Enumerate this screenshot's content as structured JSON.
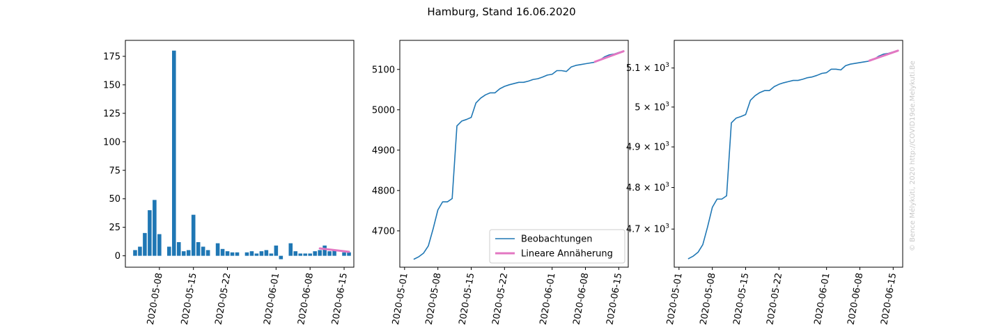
{
  "figure": {
    "title": "Hamburg, Stand 16.06.2020",
    "credit": "© Bence Mélykúti, 2020  http://COVID19de.Melykuti.Be"
  },
  "colors": {
    "observed": "#1f77b4",
    "fit": "#e377c2"
  },
  "chart_data": [
    {
      "type": "bar",
      "title": "",
      "xlabel": "",
      "ylabel": "",
      "x_is_date": true,
      "xlim": [
        "2020-05-01",
        "2020-06-17"
      ],
      "ylim": [
        -10,
        189
      ],
      "xticks": [
        "2020-05-08",
        "2020-05-15",
        "2020-05-22",
        "2020-06-01",
        "2020-06-08",
        "2020-06-15"
      ],
      "yticks": [
        0,
        25,
        50,
        75,
        100,
        125,
        150,
        175
      ],
      "ytick_labels": [
        "0",
        "25",
        "50",
        "75",
        "100",
        "125",
        "150",
        "175"
      ],
      "series": [
        {
          "kind": "bar",
          "x": [
            "2020-05-03",
            "2020-05-04",
            "2020-05-05",
            "2020-05-06",
            "2020-05-07",
            "2020-05-08",
            "2020-05-10",
            "2020-05-11",
            "2020-05-12",
            "2020-05-13",
            "2020-05-14",
            "2020-05-15",
            "2020-05-16",
            "2020-05-17",
            "2020-05-18",
            "2020-05-20",
            "2020-05-21",
            "2020-05-22",
            "2020-05-23",
            "2020-05-24",
            "2020-05-26",
            "2020-05-27",
            "2020-05-28",
            "2020-05-29",
            "2020-05-30",
            "2020-05-31",
            "2020-06-01",
            "2020-06-02",
            "2020-06-04",
            "2020-06-05",
            "2020-06-06",
            "2020-06-07",
            "2020-06-08",
            "2020-06-09",
            "2020-06-10",
            "2020-06-11",
            "2020-06-12",
            "2020-06-13",
            "2020-06-15",
            "2020-06-16"
          ],
          "values": [
            5,
            8,
            20,
            40,
            49,
            19,
            8,
            180,
            12,
            4,
            5,
            36,
            12,
            8,
            5,
            11,
            6,
            4,
            3,
            3,
            3,
            4,
            2,
            4,
            5,
            2,
            9,
            -3,
            11,
            4,
            2,
            2,
            2,
            4,
            5,
            9,
            4,
            5,
            3,
            3
          ]
        },
        {
          "kind": "line",
          "name": "",
          "x": [
            "2020-06-10",
            "2020-06-16"
          ],
          "values": [
            6.5,
            3.5
          ]
        }
      ]
    },
    {
      "type": "line",
      "title": "",
      "xlabel": "",
      "ylabel": "",
      "x_is_date": true,
      "xlim": [
        "2020-04-30",
        "2020-06-17"
      ],
      "ylim": [
        4610,
        5172
      ],
      "xticks": [
        "2020-05-01",
        "2020-05-08",
        "2020-05-15",
        "2020-05-22",
        "2020-06-01",
        "2020-06-08",
        "2020-06-15"
      ],
      "yticks": [
        4700,
        4800,
        4900,
        5000,
        5100
      ],
      "ytick_labels": [
        "4700",
        "4800",
        "4900",
        "5000",
        "5100"
      ],
      "legend": {
        "position": "lower-right",
        "entries": [
          "Beobachtungen",
          "Lineare Annäherung"
        ]
      },
      "series": [
        {
          "kind": "line",
          "name": "Beobachtungen",
          "x": [
            "2020-05-03",
            "2020-05-04",
            "2020-05-05",
            "2020-05-06",
            "2020-05-07",
            "2020-05-08",
            "2020-05-09",
            "2020-05-10",
            "2020-05-11",
            "2020-05-12",
            "2020-05-13",
            "2020-05-14",
            "2020-05-15",
            "2020-05-16",
            "2020-05-17",
            "2020-05-18",
            "2020-05-19",
            "2020-05-20",
            "2020-05-21",
            "2020-05-22",
            "2020-05-23",
            "2020-05-24",
            "2020-05-25",
            "2020-05-26",
            "2020-05-27",
            "2020-05-28",
            "2020-05-29",
            "2020-05-30",
            "2020-05-31",
            "2020-06-01",
            "2020-06-02",
            "2020-06-03",
            "2020-06-04",
            "2020-06-05",
            "2020-06-06",
            "2020-06-07",
            "2020-06-08",
            "2020-06-09",
            "2020-06-10",
            "2020-06-11",
            "2020-06-12",
            "2020-06-13",
            "2020-06-14",
            "2020-06-15",
            "2020-06-16"
          ],
          "values": [
            4630,
            4636,
            4645,
            4663,
            4705,
            4752,
            4772,
            4772,
            4780,
            4960,
            4972,
            4976,
            4981,
            5017,
            5029,
            5037,
            5042,
            5042,
            5052,
            5058,
            5062,
            5065,
            5068,
            5068,
            5071,
            5075,
            5077,
            5081,
            5086,
            5088,
            5097,
            5097,
            5095,
            5106,
            5110,
            5112,
            5114,
            5116,
            5118,
            5123,
            5131,
            5136,
            5138,
            5142,
            5146
          ]
        },
        {
          "kind": "line",
          "name": "Lineare Annäherung",
          "x": [
            "2020-06-10",
            "2020-06-16"
          ],
          "values": [
            5119,
            5145
          ]
        }
      ]
    },
    {
      "type": "line",
      "title": "",
      "xlabel": "",
      "ylabel": "",
      "x_is_date": true,
      "yscale": "log",
      "xlim": [
        "2020-04-30",
        "2020-06-17"
      ],
      "ylim": [
        4610,
        5172
      ],
      "xticks": [
        "2020-05-01",
        "2020-05-08",
        "2020-05-15",
        "2020-05-22",
        "2020-06-01",
        "2020-06-08",
        "2020-06-15"
      ],
      "yticks": [
        4700,
        4800,
        4900,
        5000,
        5100
      ],
      "ytick_labels": [
        {
          "mantissa": "4.7",
          "base": "10",
          "exp": "3"
        },
        {
          "mantissa": "4.8",
          "base": "10",
          "exp": "3"
        },
        {
          "mantissa": "4.9",
          "base": "10",
          "exp": "3"
        },
        {
          "mantissa": "5",
          "base": "10",
          "exp": "3"
        },
        {
          "mantissa": "5.1",
          "base": "10",
          "exp": "3"
        }
      ],
      "series": [
        {
          "kind": "line",
          "name": "Beobachtungen",
          "x": [
            "2020-05-03",
            "2020-05-04",
            "2020-05-05",
            "2020-05-06",
            "2020-05-07",
            "2020-05-08",
            "2020-05-09",
            "2020-05-10",
            "2020-05-11",
            "2020-05-12",
            "2020-05-13",
            "2020-05-14",
            "2020-05-15",
            "2020-05-16",
            "2020-05-17",
            "2020-05-18",
            "2020-05-19",
            "2020-05-20",
            "2020-05-21",
            "2020-05-22",
            "2020-05-23",
            "2020-05-24",
            "2020-05-25",
            "2020-05-26",
            "2020-05-27",
            "2020-05-28",
            "2020-05-29",
            "2020-05-30",
            "2020-05-31",
            "2020-06-01",
            "2020-06-02",
            "2020-06-03",
            "2020-06-04",
            "2020-06-05",
            "2020-06-06",
            "2020-06-07",
            "2020-06-08",
            "2020-06-09",
            "2020-06-10",
            "2020-06-11",
            "2020-06-12",
            "2020-06-13",
            "2020-06-14",
            "2020-06-15",
            "2020-06-16"
          ],
          "values": [
            4630,
            4636,
            4645,
            4663,
            4705,
            4752,
            4772,
            4772,
            4780,
            4960,
            4972,
            4976,
            4981,
            5017,
            5029,
            5037,
            5042,
            5042,
            5052,
            5058,
            5062,
            5065,
            5068,
            5068,
            5071,
            5075,
            5077,
            5081,
            5086,
            5088,
            5097,
            5097,
            5095,
            5106,
            5110,
            5112,
            5114,
            5116,
            5118,
            5123,
            5131,
            5136,
            5138,
            5142,
            5146
          ]
        },
        {
          "kind": "line",
          "name": "Lineare Annäherung",
          "x": [
            "2020-06-10",
            "2020-06-16"
          ],
          "values": [
            5119,
            5145
          ]
        }
      ]
    }
  ]
}
